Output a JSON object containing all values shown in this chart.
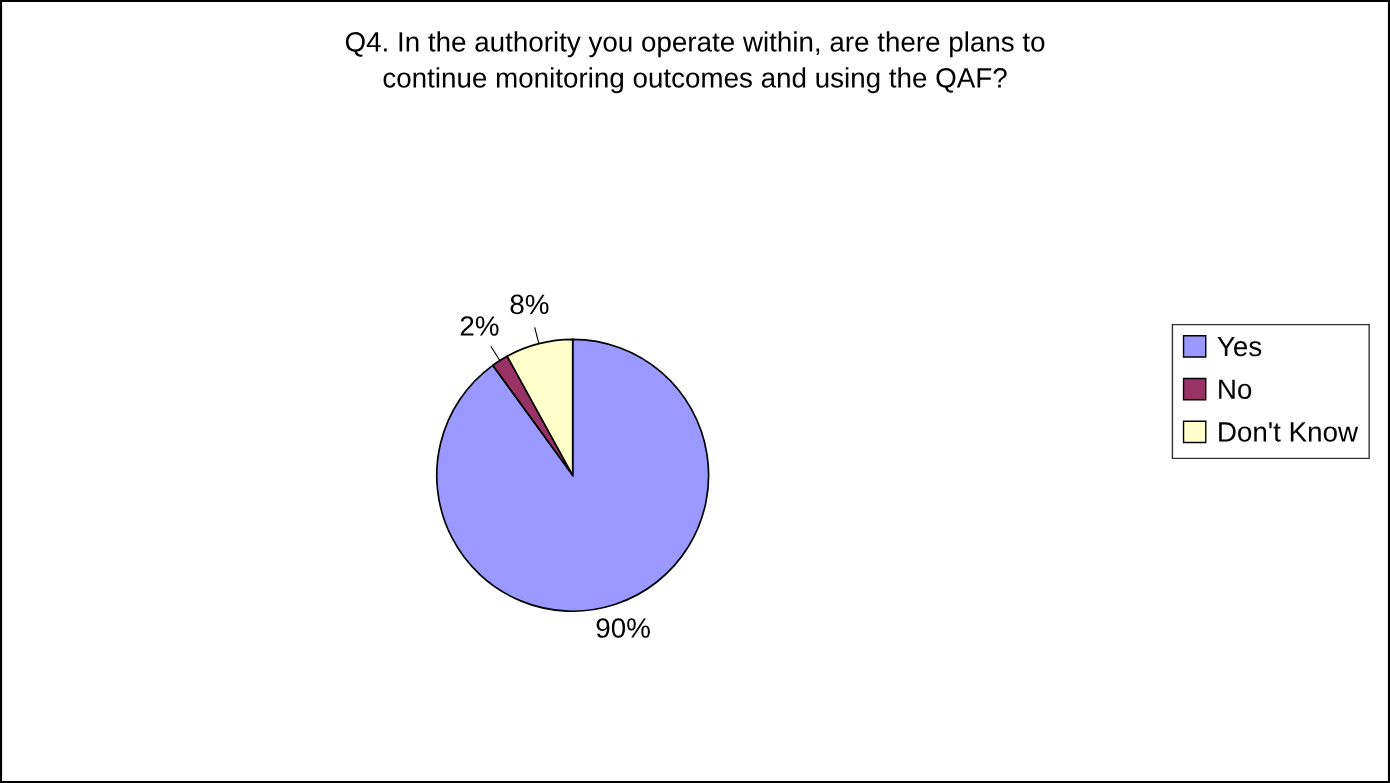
{
  "chart_data": {
    "type": "pie",
    "title": "Q4. In the authority you operate within, are there plans to\ncontinue monitoring outcomes and using the QAF?",
    "categories": [
      "Yes",
      "No",
      "Don't Know"
    ],
    "values": [
      90,
      2,
      8
    ],
    "colors": [
      "#9999ff",
      "#993366",
      "#ffffcc"
    ],
    "value_labels": [
      "90%",
      "2%",
      "8%"
    ],
    "legend": "right"
  }
}
